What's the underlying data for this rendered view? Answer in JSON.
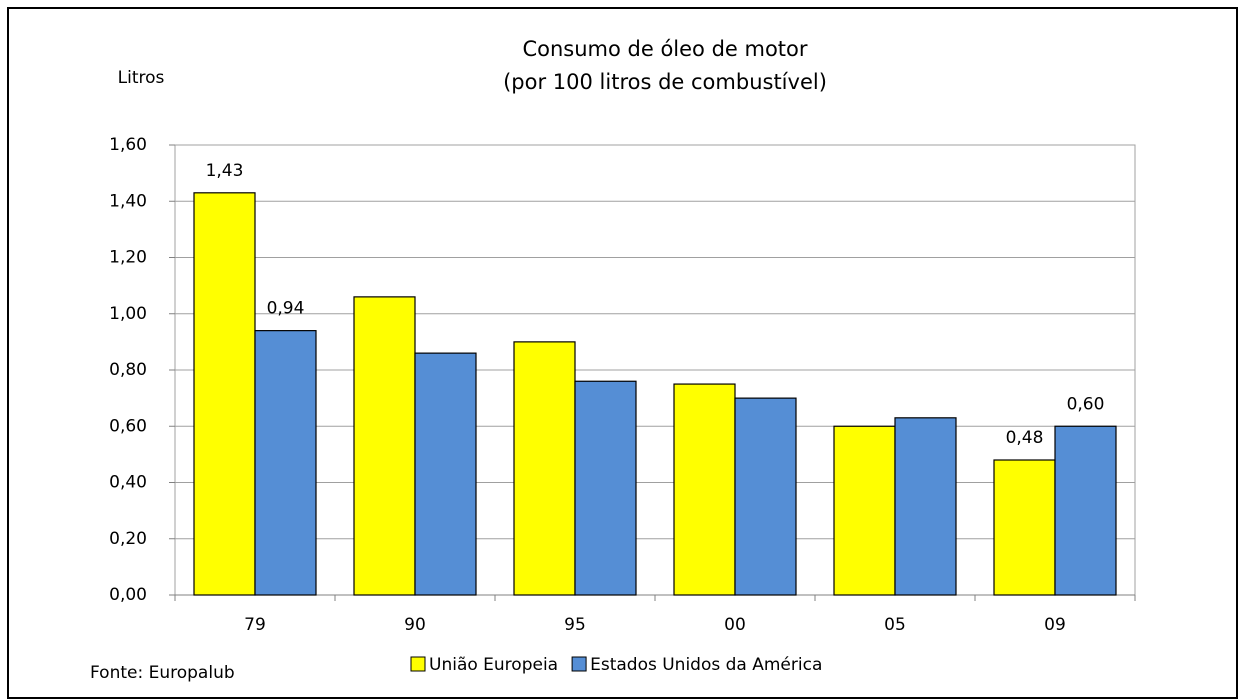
{
  "chart_data": {
    "type": "bar",
    "title": "Consumo de óleo de motor",
    "subtitle": "(por 100 litros de combustível)",
    "y_label": "Litros",
    "source": "Fonte: Europalub",
    "categories": [
      "79",
      "90",
      "95",
      "00",
      "05",
      "09"
    ],
    "series": [
      {
        "name": "União Europeia",
        "color": "#ffff00",
        "values": [
          1.43,
          1.06,
          0.9,
          0.75,
          0.6,
          0.48
        ],
        "value_labels": [
          "1,43",
          null,
          null,
          null,
          null,
          "0,48"
        ]
      },
      {
        "name": "Estados Unidos da América",
        "color": "#558ed5",
        "values": [
          0.94,
          0.86,
          0.76,
          0.7,
          0.63,
          0.6
        ],
        "value_labels": [
          "0,94",
          null,
          null,
          null,
          null,
          "0,60"
        ]
      }
    ],
    "ylim": [
      0,
      1.6
    ],
    "yticks": [
      {
        "value": 0,
        "label": "0,00"
      },
      {
        "value": 0.2,
        "label": "0,20"
      },
      {
        "value": 0.4,
        "label": "0,40"
      },
      {
        "value": 0.6,
        "label": "0,60"
      },
      {
        "value": 0.8,
        "label": "0,80"
      },
      {
        "value": 1.0,
        "label": "1,00"
      },
      {
        "value": 1.2,
        "label": "1,20"
      },
      {
        "value": 1.4,
        "label": "1,40"
      },
      {
        "value": 1.6,
        "label": "1,60"
      }
    ],
    "grid": true,
    "legend": "bottom"
  }
}
